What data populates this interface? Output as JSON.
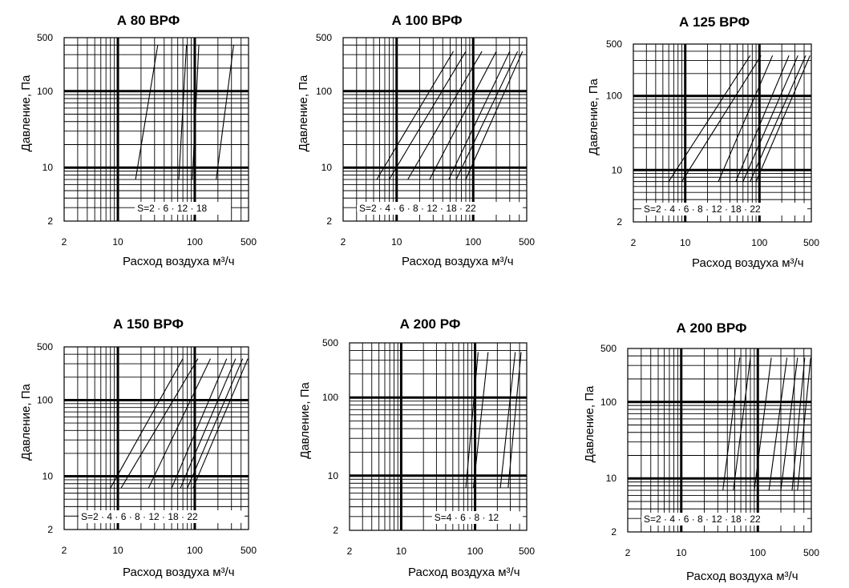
{
  "chart_data": [
    {
      "type": "line",
      "title": "А 80 ВРФ",
      "xlabel": "Расход воздуха м³/ч",
      "ylabel": "Давление, Па",
      "xscale": "log",
      "yscale": "log",
      "xlim": [
        2,
        500
      ],
      "ylim": [
        2,
        500
      ],
      "xticks": [
        "2",
        "10",
        "100",
        "500"
      ],
      "yticks": [
        "2",
        "10",
        "100",
        "500"
      ],
      "grid": true,
      "settings_label": [
        "S=2",
        "6",
        "12",
        "18"
      ],
      "series": [
        {
          "x": [
            17,
            33
          ],
          "y": [
            7,
            400
          ]
        },
        {
          "x": [
            62,
            78
          ],
          "y": [
            7,
            400
          ]
        },
        {
          "x": [
            93,
            113
          ],
          "y": [
            7,
            400
          ]
        },
        {
          "x": [
            190,
            320
          ],
          "y": [
            7,
            400
          ]
        }
      ]
    },
    {
      "type": "line",
      "title": "А 100 ВРФ",
      "xlabel": "Расход воздуха м³/ч",
      "ylabel": "Давление, Па",
      "xscale": "log",
      "yscale": "log",
      "xlim": [
        2,
        500
      ],
      "ylim": [
        2,
        500
      ],
      "xticks": [
        "2",
        "10",
        "100",
        "500"
      ],
      "yticks": [
        "2",
        "10",
        "100",
        "500"
      ],
      "grid": true,
      "settings_label": [
        "S=2",
        "4",
        "6",
        "8",
        "12",
        "18",
        "22"
      ],
      "series": [
        {
          "x": [
            5.5,
            55
          ],
          "y": [
            7,
            330
          ]
        },
        {
          "x": [
            8,
            80
          ],
          "y": [
            7,
            330
          ]
        },
        {
          "x": [
            14,
            130
          ],
          "y": [
            7,
            330
          ]
        },
        {
          "x": [
            27,
            200
          ],
          "y": [
            7,
            330
          ]
        },
        {
          "x": [
            48,
            300
          ],
          "y": [
            7,
            330
          ]
        },
        {
          "x": [
            60,
            380
          ],
          "y": [
            7,
            330
          ]
        },
        {
          "x": [
            80,
            440
          ],
          "y": [
            7,
            330
          ]
        }
      ]
    },
    {
      "type": "line",
      "title": "А 125 ВРФ",
      "xlabel": "Расход воздуха м³/ч",
      "ylabel": "Давление, Па",
      "xscale": "log",
      "yscale": "log",
      "xlim": [
        2,
        500
      ],
      "ylim": [
        2,
        500
      ],
      "xticks": [
        "2",
        "10",
        "100",
        "500"
      ],
      "yticks": [
        "2",
        "10",
        "100",
        "500"
      ],
      "grid": true,
      "settings_label": [
        "S=2",
        "4",
        "6",
        "8",
        "12",
        "18",
        "22"
      ],
      "series": [
        {
          "x": [
            6,
            75
          ],
          "y": [
            7,
            350
          ]
        },
        {
          "x": [
            9,
            105
          ],
          "y": [
            7,
            350
          ]
        },
        {
          "x": [
            28,
            150
          ],
          "y": [
            7,
            350
          ]
        },
        {
          "x": [
            48,
            250
          ],
          "y": [
            7,
            350
          ]
        },
        {
          "x": [
            60,
            330
          ],
          "y": [
            7,
            350
          ]
        },
        {
          "x": [
            75,
            420
          ],
          "y": [
            7,
            350
          ]
        },
        {
          "x": [
            90,
            480
          ],
          "y": [
            7,
            350
          ]
        }
      ]
    },
    {
      "type": "line",
      "title": "А 150 ВРФ",
      "xlabel": "Расход воздуха м³/ч",
      "ylabel": "Давление, Па",
      "xscale": "log",
      "yscale": "log",
      "xlim": [
        2,
        500
      ],
      "ylim": [
        2,
        500
      ],
      "xticks": [
        "2",
        "10",
        "100",
        "500"
      ],
      "yticks": [
        "2",
        "10",
        "100",
        "500"
      ],
      "grid": true,
      "settings_label": [
        "S=2",
        "4",
        "6",
        "8",
        "12",
        "18",
        "22"
      ],
      "series": [
        {
          "x": [
            8,
            70
          ],
          "y": [
            7,
            350
          ]
        },
        {
          "x": [
            11,
            110
          ],
          "y": [
            7,
            350
          ]
        },
        {
          "x": [
            25,
            160
          ],
          "y": [
            7,
            350
          ]
        },
        {
          "x": [
            50,
            260
          ],
          "y": [
            7,
            350
          ]
        },
        {
          "x": [
            65,
            340
          ],
          "y": [
            7,
            350
          ]
        },
        {
          "x": [
            80,
            420
          ],
          "y": [
            7,
            350
          ]
        },
        {
          "x": [
            95,
            490
          ],
          "y": [
            7,
            350
          ]
        }
      ]
    },
    {
      "type": "line",
      "title": "А 200 РФ",
      "xlabel": "Расход воздуха м³/ч",
      "ylabel": "Давление, Па",
      "xscale": "log",
      "yscale": "log",
      "xlim": [
        2,
        500
      ],
      "ylim": [
        2,
        500
      ],
      "xticks": [
        "2",
        "10",
        "100",
        "500"
      ],
      "yticks": [
        "2",
        "10",
        "100",
        "500"
      ],
      "grid": true,
      "settings_label": [
        "S=4",
        "6",
        "8",
        "12"
      ],
      "series": [
        {
          "x": [
            75,
            110
          ],
          "y": [
            7,
            380
          ]
        },
        {
          "x": [
            95,
            150
          ],
          "y": [
            7,
            380
          ]
        },
        {
          "x": [
            220,
            350
          ],
          "y": [
            7,
            380
          ]
        },
        {
          "x": [
            280,
            420
          ],
          "y": [
            7,
            380
          ]
        }
      ]
    },
    {
      "type": "line",
      "title": "А 200 ВРФ",
      "xlabel": "Расход воздуха м³/ч",
      "ylabel": "Давление, Па",
      "xscale": "log",
      "yscale": "log",
      "xlim": [
        2,
        500
      ],
      "ylim": [
        2,
        500
      ],
      "xticks": [
        "2",
        "10",
        "100",
        "500"
      ],
      "yticks": [
        "2",
        "10",
        "100",
        "500"
      ],
      "grid": true,
      "settings_label": [
        "S=2",
        "4",
        "6",
        "8",
        "12",
        "18",
        "22"
      ],
      "series": [
        {
          "x": [
            35,
            58
          ],
          "y": [
            7,
            380
          ]
        },
        {
          "x": [
            48,
            80
          ],
          "y": [
            7,
            380
          ]
        },
        {
          "x": [
            90,
            150
          ],
          "y": [
            7,
            380
          ]
        },
        {
          "x": [
            140,
            240
          ],
          "y": [
            7,
            380
          ]
        },
        {
          "x": [
            200,
            330
          ],
          "y": [
            7,
            380
          ]
        },
        {
          "x": [
            280,
            410
          ],
          "y": [
            7,
            380
          ]
        },
        {
          "x": [
            330,
            490
          ],
          "y": [
            7,
            380
          ]
        }
      ]
    }
  ]
}
